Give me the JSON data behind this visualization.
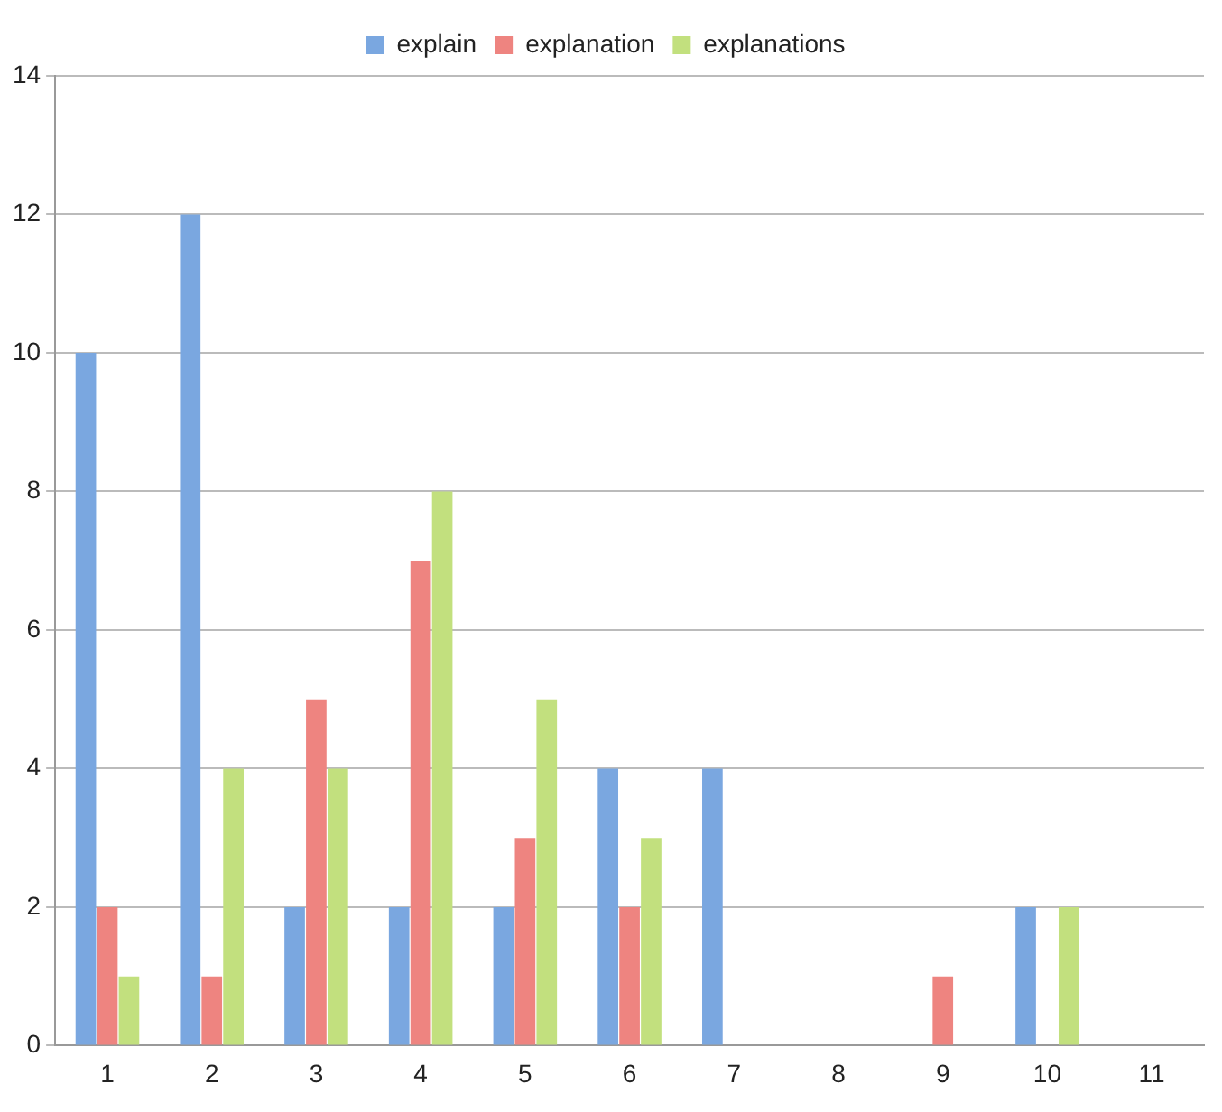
{
  "chart_data": {
    "type": "bar",
    "categories": [
      "1",
      "2",
      "3",
      "4",
      "5",
      "6",
      "7",
      "8",
      "9",
      "10",
      "11"
    ],
    "series": [
      {
        "name": "explain",
        "color": "#7aa7e0",
        "values": [
          10,
          12,
          2,
          2,
          2,
          4,
          4,
          0,
          0,
          2,
          0
        ]
      },
      {
        "name": "explanation",
        "color": "#ee8480",
        "values": [
          2,
          1,
          5,
          7,
          3,
          2,
          0,
          0,
          1,
          0,
          0
        ]
      },
      {
        "name": "explanations",
        "color": "#c2e07e",
        "values": [
          1,
          4,
          4,
          8,
          5,
          3,
          0,
          0,
          0,
          2,
          0
        ]
      }
    ],
    "ylim": [
      0,
      14
    ],
    "yticks": [
      0,
      2,
      4,
      6,
      8,
      10,
      12,
      14
    ],
    "grid": "y",
    "legend": "top"
  }
}
